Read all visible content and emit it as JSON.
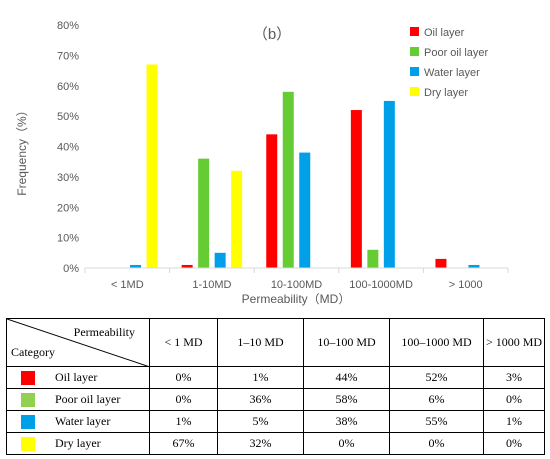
{
  "chart_data": {
    "type": "bar",
    "title": "（b）",
    "xlabel": "Permeability（MD）",
    "ylabel": "Frequency（%）",
    "ylim": [
      0,
      80
    ],
    "y_ticks": [
      "0%",
      "10%",
      "20%",
      "30%",
      "40%",
      "50%",
      "60%",
      "70%",
      "80%"
    ],
    "categories": [
      "< 1MD",
      "1-10MD",
      "10-100MD",
      "100-1000MD",
      "> 1000"
    ],
    "series": [
      {
        "name": "Oil layer",
        "color": "#ff0000",
        "values": [
          0,
          1,
          44,
          52,
          3
        ]
      },
      {
        "name": "Poor oil layer",
        "color": "#66cc33",
        "values": [
          0,
          36,
          58,
          6,
          0
        ]
      },
      {
        "name": "Water layer",
        "color": "#00a0e9",
        "values": [
          1,
          5,
          38,
          55,
          1
        ]
      },
      {
        "name": "Dry layer",
        "color": "#ffff00",
        "values": [
          67,
          32,
          0,
          0,
          0
        ]
      }
    ],
    "grid": false,
    "legend_position": "top-right"
  },
  "table": {
    "header_top": "Permeability",
    "header_bottom": "Category",
    "columns": [
      "< 1 MD",
      "1–10 MD",
      "10–100 MD",
      "100–1000 MD",
      "> 1000 MD"
    ],
    "rows": [
      {
        "label": "Oil layer",
        "color": "#ff0000",
        "values": [
          "0%",
          "1%",
          "44%",
          "52%",
          "3%"
        ]
      },
      {
        "label": "Poor oil layer",
        "color": "#92d050",
        "values": [
          "0%",
          "36%",
          "58%",
          "6%",
          "0%"
        ]
      },
      {
        "label": "Water layer",
        "color": "#00a0e9",
        "values": [
          "1%",
          "5%",
          "38%",
          "55%",
          "1%"
        ]
      },
      {
        "label": "Dry layer",
        "color": "#ffff00",
        "values": [
          "67%",
          "32%",
          "0%",
          "0%",
          "0%"
        ]
      }
    ]
  }
}
